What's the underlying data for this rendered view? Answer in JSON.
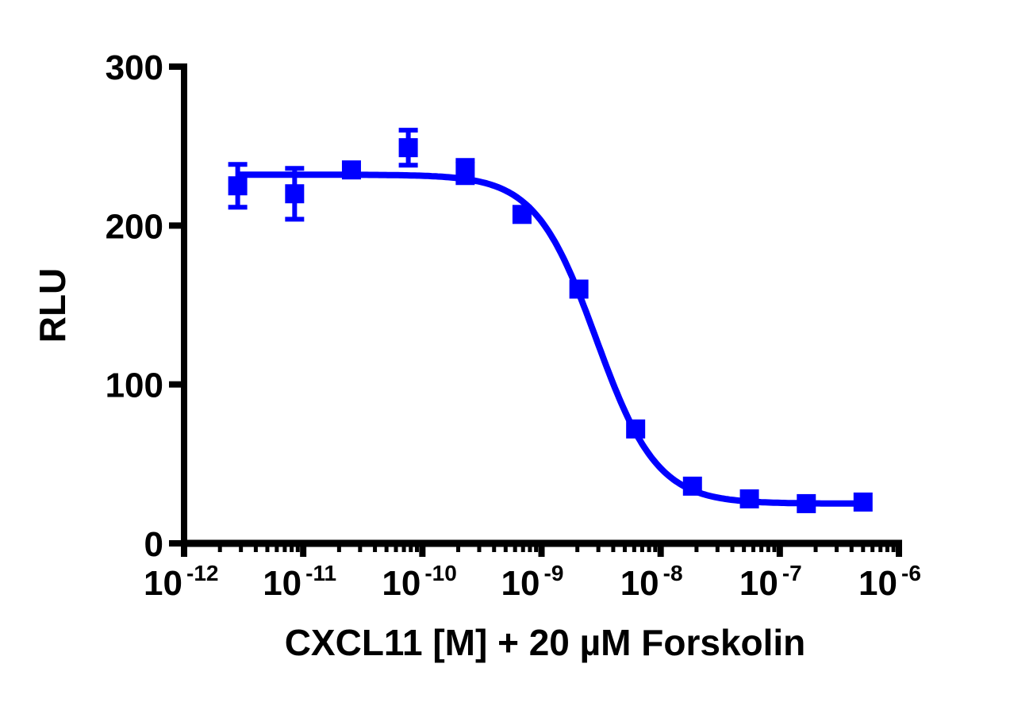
{
  "chart_data": {
    "type": "scatter",
    "title": "",
    "xlabel": "CXCL11 [M] + 20 µM Forskolin",
    "ylabel": "RLU",
    "xscale": "log",
    "xlim": [
      1e-12,
      1e-06
    ],
    "ylim": [
      0,
      300
    ],
    "x_ticks": [
      {
        "value": 1e-12,
        "base": "10",
        "exp": "-12"
      },
      {
        "value": 1e-11,
        "base": "10",
        "exp": "-11"
      },
      {
        "value": 1e-10,
        "base": "10",
        "exp": "-10"
      },
      {
        "value": 1e-09,
        "base": "10",
        "exp": "-9"
      },
      {
        "value": 1e-08,
        "base": "10",
        "exp": "-8"
      },
      {
        "value": 1e-07,
        "base": "10",
        "exp": "-7"
      },
      {
        "value": 1e-06,
        "base": "10",
        "exp": "-6"
      }
    ],
    "y_ticks": [
      0,
      100,
      200,
      300
    ],
    "grid": false,
    "legend": null,
    "series": [
      {
        "name": "CXCL11",
        "color": "#0000FF",
        "marker": "square",
        "x": [
          2.82e-12,
          8.47e-12,
          2.54e-11,
          7.62e-11,
          2.29e-10,
          6.86e-10,
          2.06e-09,
          6.17e-09,
          1.85e-08,
          5.56e-08,
          1.67e-07,
          5e-07
        ],
        "y": [
          225,
          220,
          235,
          249,
          234,
          207,
          160,
          72,
          36,
          28,
          25,
          26
        ],
        "error": [
          13.5,
          16,
          2,
          11,
          7,
          4,
          2,
          2,
          2,
          1,
          1,
          1
        ]
      }
    ],
    "fit": {
      "model": "four-parameter logistic",
      "top": 232,
      "bottom": 25,
      "log_ec50": -8.54,
      "hill_slope": 1.7,
      "x_range": [
        2.82e-12,
        5e-07
      ]
    }
  }
}
